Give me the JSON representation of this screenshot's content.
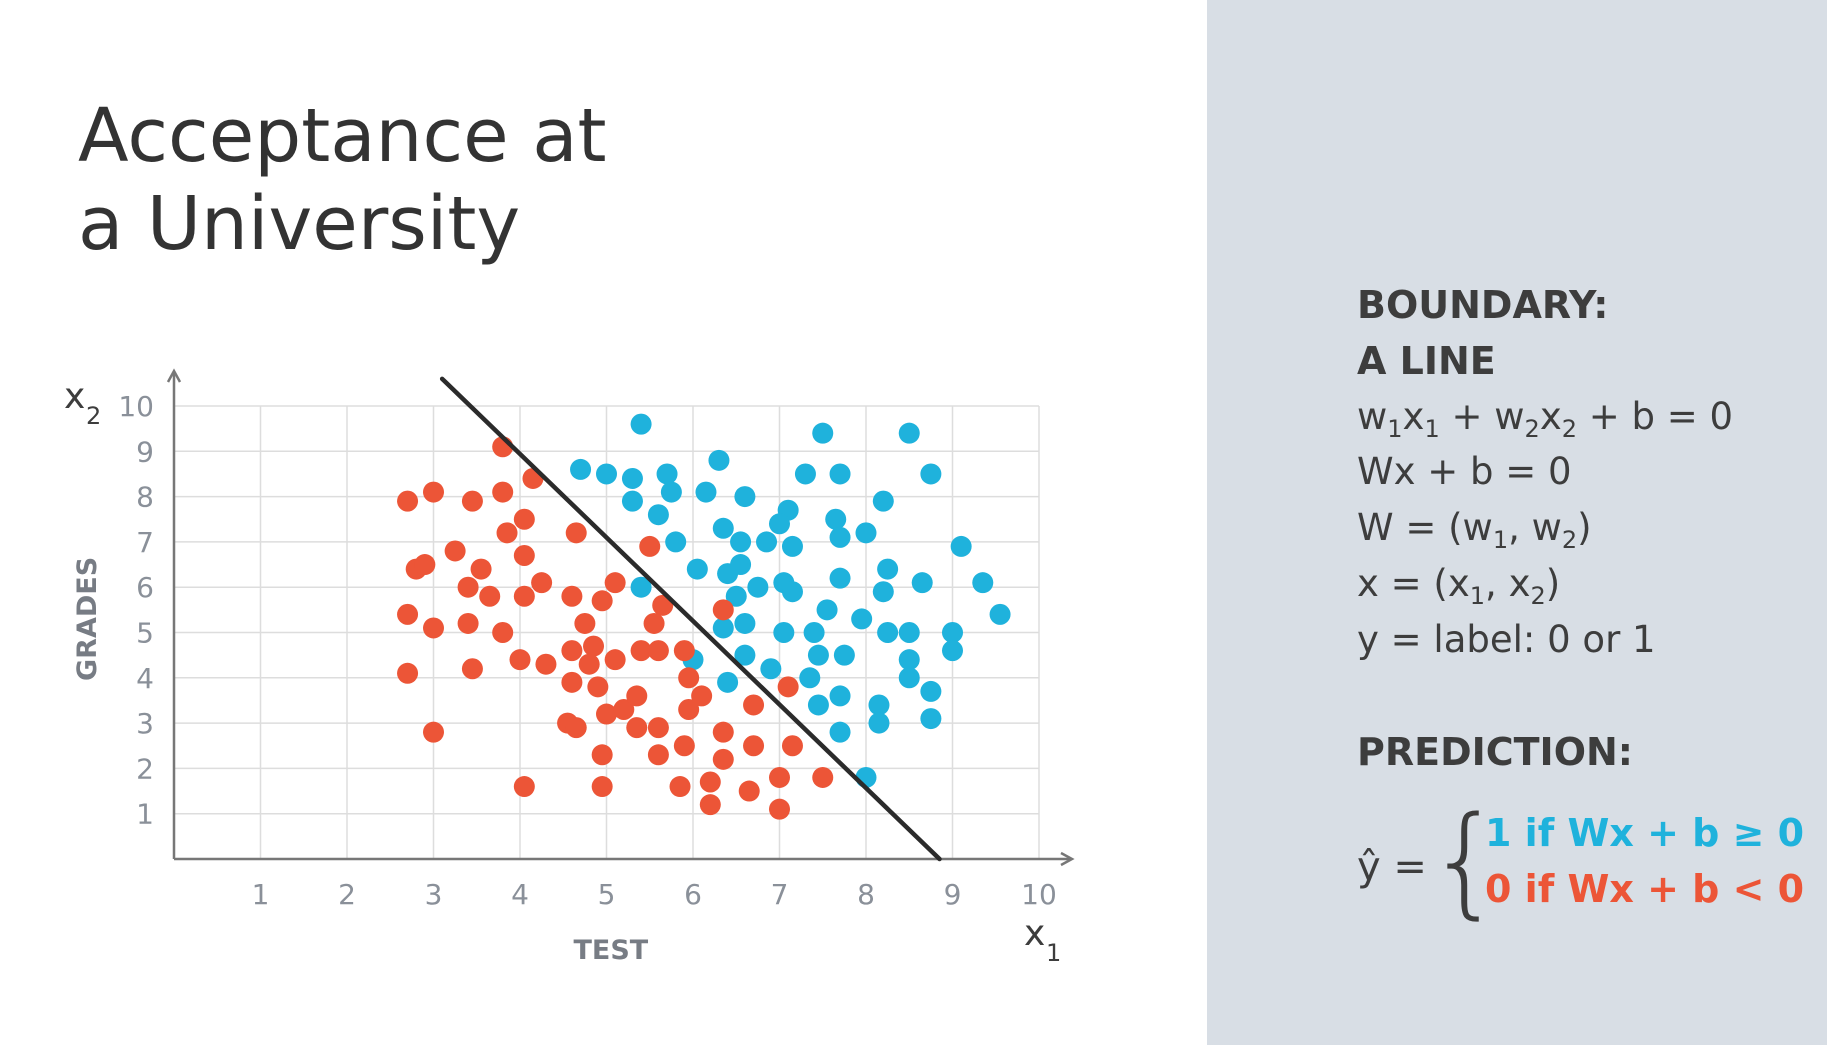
{
  "title": {
    "line1": "Acceptance at",
    "line2": "a University"
  },
  "panel": {
    "heading_boundary": "BOUNDARY:",
    "heading_line": "A LINE",
    "heading_prediction": "PREDICTION:",
    "yhat": "ŷ =",
    "brace": "{",
    "case_one": "1 if Wx + b ≥ 0",
    "case_zero": "0 if Wx + b < 0",
    "colors": {
      "panel_bg": "#d8dee5",
      "blue": "#1fb2dc",
      "red": "#ec5537"
    }
  },
  "chart_data": {
    "type": "scatter",
    "xlabel": "TEST",
    "ylabel": "GRADES",
    "x_axis_symbol": "x",
    "x_axis_symbol_sub": "1",
    "y_axis_symbol": "x",
    "y_axis_symbol_sub": "2",
    "xlim": [
      0,
      10
    ],
    "ylim": [
      0,
      10
    ],
    "xticks": [
      "1",
      "2",
      "3",
      "4",
      "5",
      "6",
      "7",
      "8",
      "9",
      "10"
    ],
    "yticks": [
      "1",
      "2",
      "3",
      "4",
      "5",
      "6",
      "7",
      "8",
      "9",
      "10"
    ],
    "grid": true,
    "boundary_line": {
      "from": [
        3.1,
        10.6
      ],
      "to": [
        8.85,
        0
      ]
    },
    "colors": {
      "accepted": "#1fb2dc",
      "rejected": "#ec5537",
      "line": "#2b2b2b",
      "grid": "#dddddd",
      "axis": "#777777"
    },
    "series": [
      {
        "color": "#1fb2dc",
        "points": [
          [
            5.4,
            9.6
          ],
          [
            7.5,
            9.4
          ],
          [
            8.5,
            9.4
          ],
          [
            4.7,
            8.6
          ],
          [
            5.0,
            8.5
          ],
          [
            5.3,
            8.4
          ],
          [
            5.7,
            8.5
          ],
          [
            6.3,
            8.8
          ],
          [
            7.3,
            8.5
          ],
          [
            7.7,
            8.5
          ],
          [
            8.75,
            8.5
          ],
          [
            5.3,
            7.9
          ],
          [
            5.75,
            8.1
          ],
          [
            6.15,
            8.1
          ],
          [
            6.6,
            8.0
          ],
          [
            7.1,
            7.7
          ],
          [
            5.6,
            7.6
          ],
          [
            6.35,
            7.3
          ],
          [
            6.55,
            7.0
          ],
          [
            6.85,
            7.0
          ],
          [
            7.0,
            7.4
          ],
          [
            7.65,
            7.5
          ],
          [
            8.2,
            7.9
          ],
          [
            8.0,
            7.2
          ],
          [
            7.7,
            7.1
          ],
          [
            5.8,
            7.0
          ],
          [
            7.15,
            6.9
          ],
          [
            9.1,
            6.9
          ],
          [
            6.05,
            6.4
          ],
          [
            6.4,
            6.3
          ],
          [
            6.55,
            6.5
          ],
          [
            7.05,
            6.1
          ],
          [
            6.75,
            6.0
          ],
          [
            7.7,
            6.2
          ],
          [
            8.25,
            6.4
          ],
          [
            8.65,
            6.1
          ],
          [
            9.35,
            6.1
          ],
          [
            9.55,
            5.4
          ],
          [
            6.5,
            5.8
          ],
          [
            7.15,
            5.9
          ],
          [
            7.55,
            5.5
          ],
          [
            8.2,
            5.9
          ],
          [
            5.4,
            6.0
          ],
          [
            6.35,
            5.1
          ],
          [
            6.6,
            5.2
          ],
          [
            7.05,
            5.0
          ],
          [
            7.4,
            5.0
          ],
          [
            7.95,
            5.3
          ],
          [
            8.25,
            5.0
          ],
          [
            8.5,
            5.0
          ],
          [
            9.0,
            5.0
          ],
          [
            9.0,
            4.6
          ],
          [
            6.6,
            4.5
          ],
          [
            7.45,
            4.5
          ],
          [
            7.75,
            4.5
          ],
          [
            8.5,
            4.4
          ],
          [
            6.0,
            4.4
          ],
          [
            6.4,
            3.9
          ],
          [
            6.9,
            4.2
          ],
          [
            7.35,
            4.0
          ],
          [
            8.5,
            4.0
          ],
          [
            8.75,
            3.7
          ],
          [
            7.45,
            3.4
          ],
          [
            7.7,
            3.6
          ],
          [
            8.15,
            3.4
          ],
          [
            8.15,
            3.0
          ],
          [
            8.75,
            3.1
          ],
          [
            7.7,
            2.8
          ],
          [
            8.0,
            1.8
          ]
        ]
      },
      {
        "color": "#ec5537",
        "points": [
          [
            3.8,
            9.1
          ],
          [
            4.15,
            8.4
          ],
          [
            2.7,
            7.9
          ],
          [
            3.0,
            8.1
          ],
          [
            3.45,
            7.9
          ],
          [
            3.8,
            8.1
          ],
          [
            4.05,
            7.5
          ],
          [
            3.85,
            7.2
          ],
          [
            4.65,
            7.2
          ],
          [
            3.25,
            6.8
          ],
          [
            4.05,
            6.7
          ],
          [
            2.8,
            6.4
          ],
          [
            2.9,
            6.5
          ],
          [
            3.4,
            6.0
          ],
          [
            3.55,
            6.4
          ],
          [
            3.65,
            5.8
          ],
          [
            4.25,
            6.1
          ],
          [
            4.05,
            5.8
          ],
          [
            4.6,
            5.8
          ],
          [
            4.95,
            5.7
          ],
          [
            5.1,
            6.1
          ],
          [
            5.5,
            6.9
          ],
          [
            5.65,
            5.6
          ],
          [
            6.35,
            5.5
          ],
          [
            2.7,
            5.4
          ],
          [
            3.0,
            5.1
          ],
          [
            3.4,
            5.2
          ],
          [
            3.8,
            5.0
          ],
          [
            4.75,
            5.2
          ],
          [
            5.55,
            5.2
          ],
          [
            4.0,
            4.4
          ],
          [
            4.3,
            4.3
          ],
          [
            4.6,
            4.6
          ],
          [
            4.85,
            4.7
          ],
          [
            4.8,
            4.3
          ],
          [
            5.1,
            4.4
          ],
          [
            5.4,
            4.6
          ],
          [
            5.6,
            4.6
          ],
          [
            5.9,
            4.6
          ],
          [
            2.7,
            4.1
          ],
          [
            3.45,
            4.2
          ],
          [
            4.6,
            3.9
          ],
          [
            4.9,
            3.8
          ],
          [
            5.0,
            3.2
          ],
          [
            5.2,
            3.3
          ],
          [
            5.35,
            3.6
          ],
          [
            5.95,
            4.0
          ],
          [
            6.1,
            3.6
          ],
          [
            5.95,
            3.3
          ],
          [
            6.7,
            3.4
          ],
          [
            7.1,
            3.8
          ],
          [
            4.55,
            3.0
          ],
          [
            4.65,
            2.9
          ],
          [
            5.35,
            2.9
          ],
          [
            5.6,
            2.9
          ],
          [
            6.35,
            2.8
          ],
          [
            5.6,
            2.3
          ],
          [
            5.9,
            2.5
          ],
          [
            6.35,
            2.2
          ],
          [
            6.7,
            2.5
          ],
          [
            7.15,
            2.5
          ],
          [
            4.95,
            2.3
          ],
          [
            3.0,
            2.8
          ],
          [
            4.05,
            1.6
          ],
          [
            4.95,
            1.6
          ],
          [
            5.85,
            1.6
          ],
          [
            6.2,
            1.7
          ],
          [
            6.65,
            1.5
          ],
          [
            7.0,
            1.8
          ],
          [
            7.5,
            1.8
          ],
          [
            6.2,
            1.2
          ],
          [
            7.0,
            1.1
          ]
        ]
      }
    ]
  }
}
